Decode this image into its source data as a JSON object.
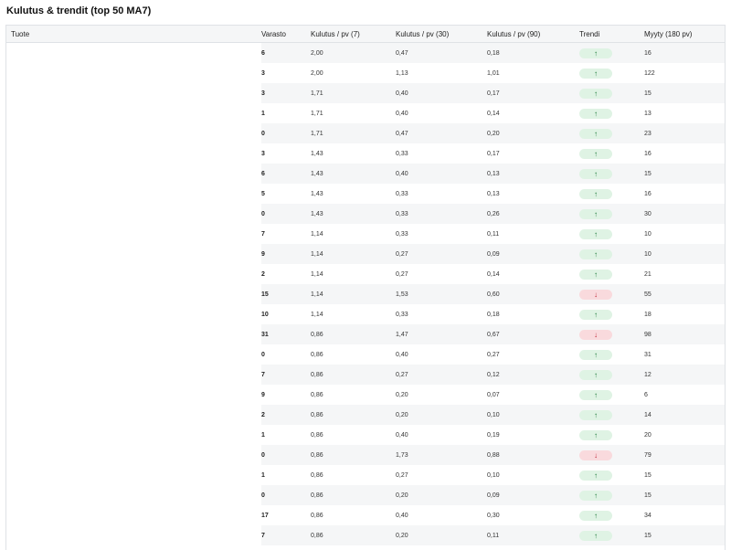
{
  "title": "Kulutus & trendit (top 50 MA7)",
  "columns": {
    "product": "Tuote",
    "stock": "Varasto",
    "usage7": "Kulutus / pv (7)",
    "usage30": "Kulutus / pv (30)",
    "usage90": "Kulutus / pv (90)",
    "trend": "Trendi",
    "sold180": "Myyty (180 pv)"
  },
  "icons": {
    "up": "arrow-up-icon",
    "down": "arrow-down-icon"
  },
  "colors": {
    "trend_up": "#1e7a3a",
    "trend_up_bg": "#dff3e4",
    "trend_down": "#c0293a",
    "trend_down_bg": "#f9dadd"
  },
  "rows": [
    {
      "stock": "6",
      "u7": "2,00",
      "u30": "0,47",
      "u90": "0,18",
      "trend": "up",
      "trend_symbol": "↑",
      "sold": "16"
    },
    {
      "stock": "3",
      "u7": "2,00",
      "u30": "1,13",
      "u90": "1,01",
      "trend": "up",
      "trend_symbol": "↑",
      "sold": "122"
    },
    {
      "stock": "3",
      "u7": "1,71",
      "u30": "0,40",
      "u90": "0,17",
      "trend": "up",
      "trend_symbol": "↑",
      "sold": "15"
    },
    {
      "stock": "1",
      "u7": "1,71",
      "u30": "0,40",
      "u90": "0,14",
      "trend": "up",
      "trend_symbol": "↑",
      "sold": "13"
    },
    {
      "stock": "0",
      "u7": "1,71",
      "u30": "0,47",
      "u90": "0,20",
      "trend": "up",
      "trend_symbol": "↑",
      "sold": "23"
    },
    {
      "stock": "3",
      "u7": "1,43",
      "u30": "0,33",
      "u90": "0,17",
      "trend": "up",
      "trend_symbol": "↑",
      "sold": "16"
    },
    {
      "stock": "6",
      "u7": "1,43",
      "u30": "0,40",
      "u90": "0,13",
      "trend": "up",
      "trend_symbol": "↑",
      "sold": "15"
    },
    {
      "stock": "5",
      "u7": "1,43",
      "u30": "0,33",
      "u90": "0,13",
      "trend": "up",
      "trend_symbol": "↑",
      "sold": "16"
    },
    {
      "stock": "0",
      "u7": "1,43",
      "u30": "0,33",
      "u90": "0,26",
      "trend": "up",
      "trend_symbol": "↑",
      "sold": "30"
    },
    {
      "stock": "7",
      "u7": "1,14",
      "u30": "0,33",
      "u90": "0,11",
      "trend": "up",
      "trend_symbol": "↑",
      "sold": "10"
    },
    {
      "stock": "9",
      "u7": "1,14",
      "u30": "0,27",
      "u90": "0,09",
      "trend": "up",
      "trend_symbol": "↑",
      "sold": "10"
    },
    {
      "stock": "2",
      "u7": "1,14",
      "u30": "0,27",
      "u90": "0,14",
      "trend": "up",
      "trend_symbol": "↑",
      "sold": "21"
    },
    {
      "stock": "15",
      "u7": "1,14",
      "u30": "1,53",
      "u90": "0,60",
      "trend": "down",
      "trend_symbol": "↓",
      "sold": "55"
    },
    {
      "stock": "10",
      "u7": "1,14",
      "u30": "0,33",
      "u90": "0,18",
      "trend": "up",
      "trend_symbol": "↑",
      "sold": "18"
    },
    {
      "stock": "31",
      "u7": "0,86",
      "u30": "1,47",
      "u90": "0,67",
      "trend": "down",
      "trend_symbol": "↓",
      "sold": "98"
    },
    {
      "stock": "0",
      "u7": "0,86",
      "u30": "0,40",
      "u90": "0,27",
      "trend": "up",
      "trend_symbol": "↑",
      "sold": "31"
    },
    {
      "stock": "7",
      "u7": "0,86",
      "u30": "0,27",
      "u90": "0,12",
      "trend": "up",
      "trend_symbol": "↑",
      "sold": "12"
    },
    {
      "stock": "9",
      "u7": "0,86",
      "u30": "0,20",
      "u90": "0,07",
      "trend": "up",
      "trend_symbol": "↑",
      "sold": "6"
    },
    {
      "stock": "2",
      "u7": "0,86",
      "u30": "0,20",
      "u90": "0,10",
      "trend": "up",
      "trend_symbol": "↑",
      "sold": "14"
    },
    {
      "stock": "1",
      "u7": "0,86",
      "u30": "0,40",
      "u90": "0,19",
      "trend": "up",
      "trend_symbol": "↑",
      "sold": "20"
    },
    {
      "stock": "0",
      "u7": "0,86",
      "u30": "1,73",
      "u90": "0,88",
      "trend": "down",
      "trend_symbol": "↓",
      "sold": "79"
    },
    {
      "stock": "1",
      "u7": "0,86",
      "u30": "0,27",
      "u90": "0,10",
      "trend": "up",
      "trend_symbol": "↑",
      "sold": "15"
    },
    {
      "stock": "0",
      "u7": "0,86",
      "u30": "0,20",
      "u90": "0,09",
      "trend": "up",
      "trend_symbol": "↑",
      "sold": "15"
    },
    {
      "stock": "17",
      "u7": "0,86",
      "u30": "0,40",
      "u90": "0,30",
      "trend": "up",
      "trend_symbol": "↑",
      "sold": "34"
    },
    {
      "stock": "7",
      "u7": "0,86",
      "u30": "0,20",
      "u90": "0,11",
      "trend": "up",
      "trend_symbol": "↑",
      "sold": "15"
    },
    {
      "stock": "",
      "u7": "",
      "u30": "",
      "u90": "",
      "trend": "up",
      "trend_symbol": "",
      "sold": ""
    }
  ]
}
